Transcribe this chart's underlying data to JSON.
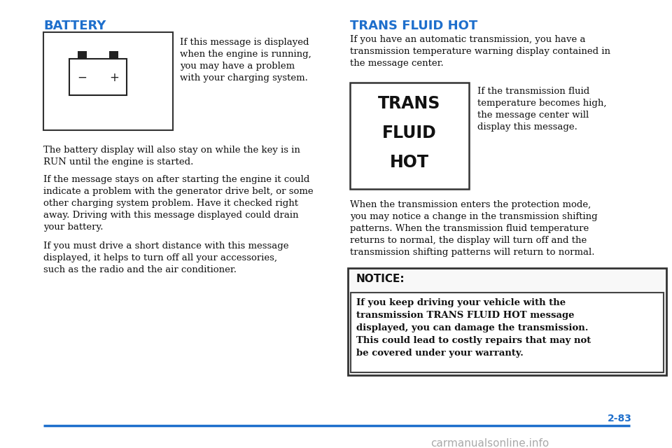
{
  "bg_color": "#ffffff",
  "heading_color": "#1e6fcc",
  "text_color": "#111111",
  "heading_battery": "BATTERY",
  "heading_trans": "TRANS FLUID HOT",
  "battery_box_text_right": "If this message is displayed\nwhen the engine is running,\nyou may have a problem\nwith your charging system.",
  "battery_para1": "The battery display will also stay on while the key is in\nRUN until the engine is started.",
  "battery_para2": "If the message stays on after starting the engine it could\nindicate a problem with the generator drive belt, or some\nother charging system problem. Have it checked right\naway. Driving with this message displayed could drain\nyour battery.",
  "battery_para3": "If you must drive a short distance with this message\ndisplayed, it helps to turn off all your accessories,\nsuch as the radio and the air conditioner.",
  "trans_para1": "If you have an automatic transmission, you have a\ntransmission temperature warning display contained in\nthe message center.",
  "trans_box_lines": [
    "TRANS",
    "FLUID",
    "HOT"
  ],
  "trans_box_text_right": "If the transmission fluid\ntemperature becomes high,\nthe message center will\ndisplay this message.",
  "trans_para2": "When the transmission enters the protection mode,\nyou may notice a change in the transmission shifting\npatterns. When the transmission fluid temperature\nreturns to normal, the display will turn off and the\ntransmission shifting patterns will return to normal.",
  "notice_title": "NOTICE:",
  "notice_body": "If you keep driving your vehicle with the\ntransmission TRANS FLUID HOT message\ndisplayed, you can damage the transmission.\nThis could lead to costly repairs that may not\nbe covered under your warranty.",
  "page_number": "2-83",
  "watermark": "carmanualsonline.info",
  "bottom_line_color": "#1e6fcc",
  "border_color": "#333333"
}
